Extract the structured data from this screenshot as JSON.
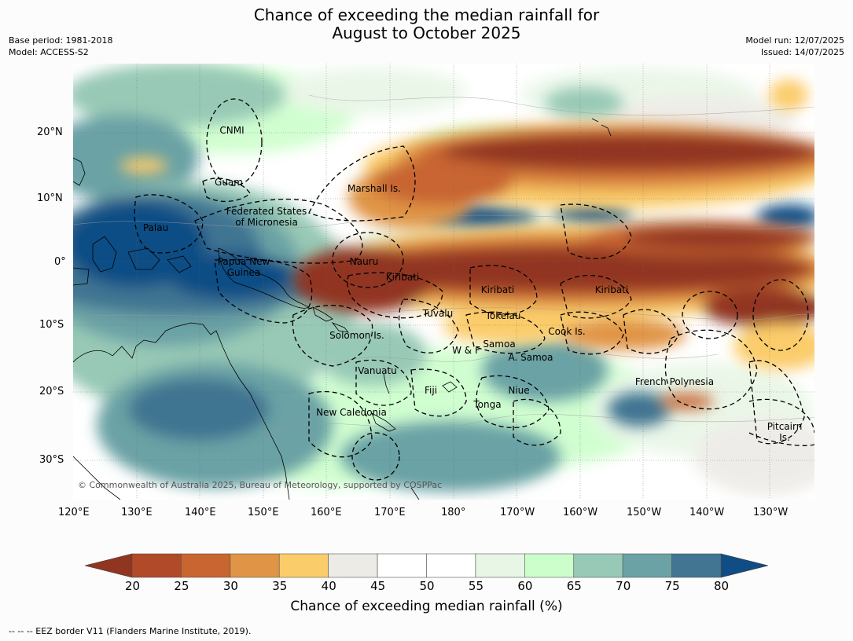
{
  "title": {
    "line1": "Chance of exceeding the median rainfall for",
    "line2": "August to October 2025"
  },
  "meta": {
    "base_period": "Base period: 1981-2018",
    "model": "Model: ACCESS-S2",
    "model_run": "Model run: 12/07/2025",
    "issued": "Issued: 14/07/2025"
  },
  "map": {
    "copyright": "© Commonwealth of Australia 2025, Bureau of Meteorology, supported by COSPPac",
    "lon_labels": [
      "120°E",
      "130°E",
      "140°E",
      "150°E",
      "160°E",
      "170°E",
      "180°",
      "170°W",
      "160°W",
      "150°W",
      "140°W",
      "130°W"
    ],
    "lat_labels": [
      "20°N",
      "10°N",
      "0°",
      "10°S",
      "20°S",
      "30°S"
    ],
    "regions": [
      {
        "id": "cnmi",
        "text": "CNMI"
      },
      {
        "id": "guam",
        "text": "Guam"
      },
      {
        "id": "marshall",
        "text": "Marshall Is."
      },
      {
        "id": "fsm1",
        "text": "Federated States"
      },
      {
        "id": "fsm2",
        "text": "of Micronesia"
      },
      {
        "id": "palau",
        "text": "Palau"
      },
      {
        "id": "png1",
        "text": "Papua New"
      },
      {
        "id": "png2",
        "text": "Guinea"
      },
      {
        "id": "nauru",
        "text": "Nauru"
      },
      {
        "id": "kiribati1",
        "text": "Kiribati"
      },
      {
        "id": "kiribati2",
        "text": "Kiribati"
      },
      {
        "id": "kiribati3",
        "text": "Kiribati"
      },
      {
        "id": "tuvalu",
        "text": "Tuvalu"
      },
      {
        "id": "tokelau",
        "text": "Tokelau"
      },
      {
        "id": "solomon",
        "text": "Solomon Is."
      },
      {
        "id": "cook",
        "text": "Cook Is."
      },
      {
        "id": "samoa",
        "text": "Samoa"
      },
      {
        "id": "wf",
        "text": "W & F"
      },
      {
        "id": "asamoa",
        "text": "A. Samoa"
      },
      {
        "id": "vanuatu",
        "text": "Vanuatu"
      },
      {
        "id": "fiji",
        "text": "Fiji"
      },
      {
        "id": "niue",
        "text": "Niue"
      },
      {
        "id": "tonga",
        "text": "Tonga"
      },
      {
        "id": "frpoly",
        "text": "French Polynesia"
      },
      {
        "id": "newcal",
        "text": "New Caledonia"
      },
      {
        "id": "pitcairn1",
        "text": "Pitcairn"
      },
      {
        "id": "pitcairn2",
        "text": "Is."
      }
    ]
  },
  "colorbar": {
    "title": "Chance of exceeding median rainfall (%)",
    "ticks": [
      20,
      25,
      30,
      35,
      40,
      45,
      50,
      55,
      60,
      65,
      70,
      75,
      80
    ],
    "under_color": "#913520",
    "over_color": "#114d85",
    "colors": [
      "#b04a28",
      "#c86530",
      "#e09445",
      "#fbcc6a",
      "#edebe6",
      "#ffffff",
      "#ffffff",
      "#e8f6e6",
      "#ccfecb",
      "#98c9b6",
      "#6aa2a5",
      "#417592"
    ]
  },
  "footnote": "--  --  -- EEZ border V11 (Flanders Marine Institute, 2019)."
}
